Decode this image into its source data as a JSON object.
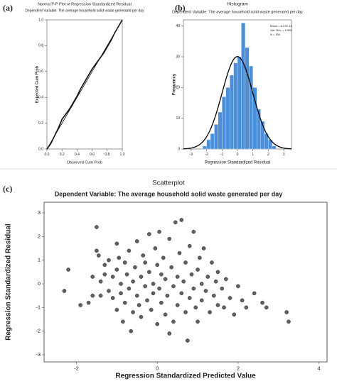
{
  "chart_data": [
    {
      "type": "line",
      "panel_label": "(a)",
      "title": "Normal P-P Plot of Regression Standardized Residual",
      "subtitle": "Dependent Variable: The average household solid waste generated per day",
      "x_label": "Observed Cum Prob",
      "y_label": "Expected Cum Prob",
      "color": "#111111",
      "x": [
        0,
        0.05,
        0.1,
        0.15,
        0.2,
        0.25,
        0.3,
        0.35,
        0.4,
        0.45,
        0.5,
        0.55,
        0.6,
        0.65,
        0.7,
        0.75,
        0.8,
        0.85,
        0.9,
        0.95,
        1
      ],
      "values": [
        0,
        0.04,
        0.1,
        0.16,
        0.23,
        0.27,
        0.31,
        0.36,
        0.41,
        0.47,
        0.52,
        0.57,
        0.62,
        0.66,
        0.7,
        0.74,
        0.79,
        0.84,
        0.9,
        0.95,
        1
      ],
      "xlim": [
        0,
        1
      ],
      "ylim": [
        0,
        1
      ],
      "xticks": [
        {
          "value": 0,
          "label": "0.0"
        },
        {
          "value": 0.2,
          "label": "0.2"
        },
        {
          "value": 0.4,
          "label": "0.4"
        },
        {
          "value": 0.6,
          "label": "0.6"
        },
        {
          "value": 0.8,
          "label": "0.8"
        },
        {
          "value": 1,
          "label": "1.0"
        }
      ],
      "yticks": [
        {
          "value": 0,
          "label": "0.0"
        },
        {
          "value": 0.2,
          "label": "0.2"
        },
        {
          "value": 0.4,
          "label": "0.4"
        },
        {
          "value": 0.6,
          "label": "0.6"
        },
        {
          "value": 0.8,
          "label": "0.8"
        },
        {
          "value": 1,
          "label": "1.0"
        }
      ]
    },
    {
      "type": "histogram",
      "panel_label": "(b)",
      "title": "Histogram",
      "subtitle": "Dependent Variable: The average household solid waste generated per day",
      "x_label": "Regression Standardized Residual",
      "y_label": "Frequency",
      "color": "#4a8fd8",
      "bins": [
        -2.25,
        -2,
        -1.75,
        -1.5,
        -1.25,
        -1,
        -0.75,
        -0.5,
        -0.25,
        0,
        0.25,
        0.5,
        0.75,
        1,
        1.25,
        1.5,
        1.75,
        2,
        2.25,
        2.5,
        2.75
      ],
      "values": [
        1,
        3,
        5,
        8,
        12,
        17,
        20,
        24,
        28,
        30,
        41,
        33,
        27,
        20,
        13,
        9,
        5,
        3,
        1,
        0
      ],
      "stats": [
        {
          "value": 6.27e-16,
          "label": "Mean = 6.27E-16"
        },
        {
          "value": 0.995,
          "label": "Std. Dev. = 0.995"
        },
        {
          "value": 300,
          "label": "N = 300"
        }
      ],
      "xlim": [
        -3.5,
        3.5
      ],
      "ylim": [
        0,
        42
      ],
      "xticks": [
        -3,
        -2,
        -1,
        0,
        1,
        2,
        3
      ],
      "yticks": [
        0,
        10,
        20,
        30,
        40
      ]
    },
    {
      "type": "scatter",
      "panel_label": "(c)",
      "title": "Scatterplot",
      "subtitle": "Dependent Variable: The average household solid waste generated per day",
      "x_label": "Regression Standardized Predicted Value",
      "y_label": "Regression Standardized Residual",
      "color": "#606060",
      "x": [
        -2.3,
        -2.2,
        -1.9,
        -1.7,
        -1.6,
        -1.6,
        -1.5,
        -1.5,
        -1.45,
        -1.4,
        -1.4,
        -1.3,
        -1.3,
        -1.2,
        -1.2,
        -1.1,
        -1.1,
        -1,
        -1,
        -1,
        -0.95,
        -0.9,
        -0.9,
        -0.85,
        -0.8,
        -0.8,
        -0.75,
        -0.7,
        -0.7,
        -0.65,
        -0.6,
        -0.6,
        -0.55,
        -0.5,
        -0.5,
        -0.45,
        -0.4,
        -0.4,
        -0.35,
        -0.3,
        -0.3,
        -0.25,
        -0.2,
        -0.2,
        -0.15,
        -0.1,
        -0.1,
        -0.05,
        0,
        0,
        0.05,
        0.05,
        0.1,
        0.1,
        0.15,
        0.2,
        0.2,
        0.25,
        0.3,
        0.3,
        0.35,
        0.4,
        0.4,
        0.45,
        0.5,
        0.5,
        0.55,
        0.6,
        0.6,
        0.65,
        0.7,
        0.7,
        0.75,
        0.8,
        0.8,
        0.85,
        0.9,
        0.9,
        0.95,
        1,
        1,
        1.05,
        1.1,
        1.1,
        1.15,
        1.2,
        1.25,
        1.3,
        1.35,
        1.4,
        1.45,
        1.5,
        1.5,
        1.6,
        1.65,
        1.7,
        1.8,
        1.9,
        2,
        2.1,
        2.2,
        2.4,
        2.6,
        2.7,
        3.2,
        3.25
      ],
      "values": [
        -0.3,
        0.6,
        -0.9,
        -0.8,
        0.3,
        -0.5,
        1.4,
        2.4,
        1.2,
        0.1,
        -0.5,
        0.8,
        0.4,
        -0.3,
        1,
        0.3,
        -0.6,
        1.7,
        0.6,
        -1.1,
        1.1,
        0,
        -0.4,
        -1.6,
        0.9,
        -0.8,
        0.4,
        1.4,
        -0.2,
        -2,
        0.1,
        -1.2,
        0.7,
        -0.5,
        1.8,
        -0.9,
        0.3,
        -1.4,
        1.2,
        -0.1,
        0.9,
        -0.7,
        2.1,
        0.5,
        -1.1,
        0,
        -0.4,
        1.5,
        -1.7,
        0.8,
        2.2,
        -0.2,
        0.4,
        -0.8,
        1.1,
        -1.3,
        0.2,
        -0.5,
        1.9,
        -2.1,
        0.7,
        -0.1,
        -1.6,
        2.6,
        0.3,
        -0.9,
        1.3,
        -0.4,
        2.7,
        0.1,
        -1.2,
        0.9,
        -2.4,
        -0.6,
        1.6,
        0.4,
        -0.2,
        2.2,
        -1,
        0.6,
        -1.6,
        1.1,
        0,
        -0.7,
        1.5,
        -0.3,
        0.3,
        -1.2,
        0.9,
        -0.5,
        0.1,
        -0.9,
        0.5,
        -0.2,
        -1,
        0.2,
        -0.6,
        -1.3,
        -0.1,
        -0.7,
        -1,
        -0.4,
        -0.8,
        -1,
        -1.2,
        -1.6
      ],
      "xlim": [
        -2.8,
        4.2
      ],
      "ylim": [
        -3.3,
        3.45
      ],
      "xticks": [
        -2,
        0,
        2,
        4
      ],
      "yticks": [
        -3,
        -2,
        -1,
        0,
        1,
        2,
        3
      ]
    }
  ]
}
